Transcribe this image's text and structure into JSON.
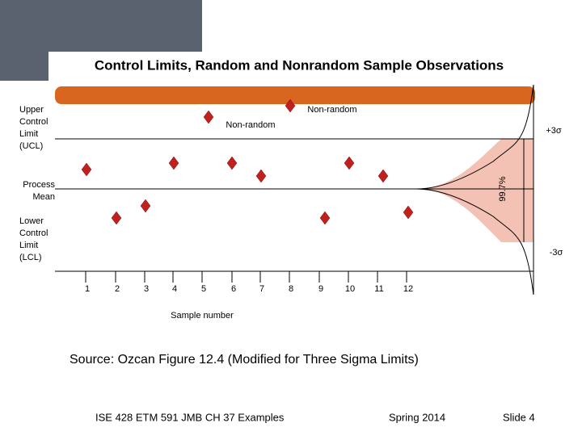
{
  "title": "Control Limits, Random and Nonrandom Sample Observations",
  "labels": {
    "ucl": [
      "Upper",
      "Control",
      "Limit",
      "(UCL)"
    ],
    "mean": [
      "Process",
      "Mean"
    ],
    "lcl": [
      "Lower",
      "Control",
      "Limit",
      "(LCL)"
    ],
    "nonrandom_top": "Non-random",
    "nonrandom_second": "Non-random",
    "plus3sigma": "+3σ",
    "minus3sigma": "-3σ",
    "coverage": "99.7%",
    "x_axis": "Sample number"
  },
  "samples": [
    "1",
    "2",
    "3",
    "4",
    "5",
    "6",
    "7",
    "8",
    "9",
    "10",
    "11",
    "12"
  ],
  "source": "Source:  Ozcan  Figure 12.4  (Modified for Three Sigma Limits)",
  "footer": {
    "course": "ISE 428  ETM 591 JMB   CH 37 Examples",
    "term": "Spring 2014",
    "slide": "Slide 4"
  }
}
